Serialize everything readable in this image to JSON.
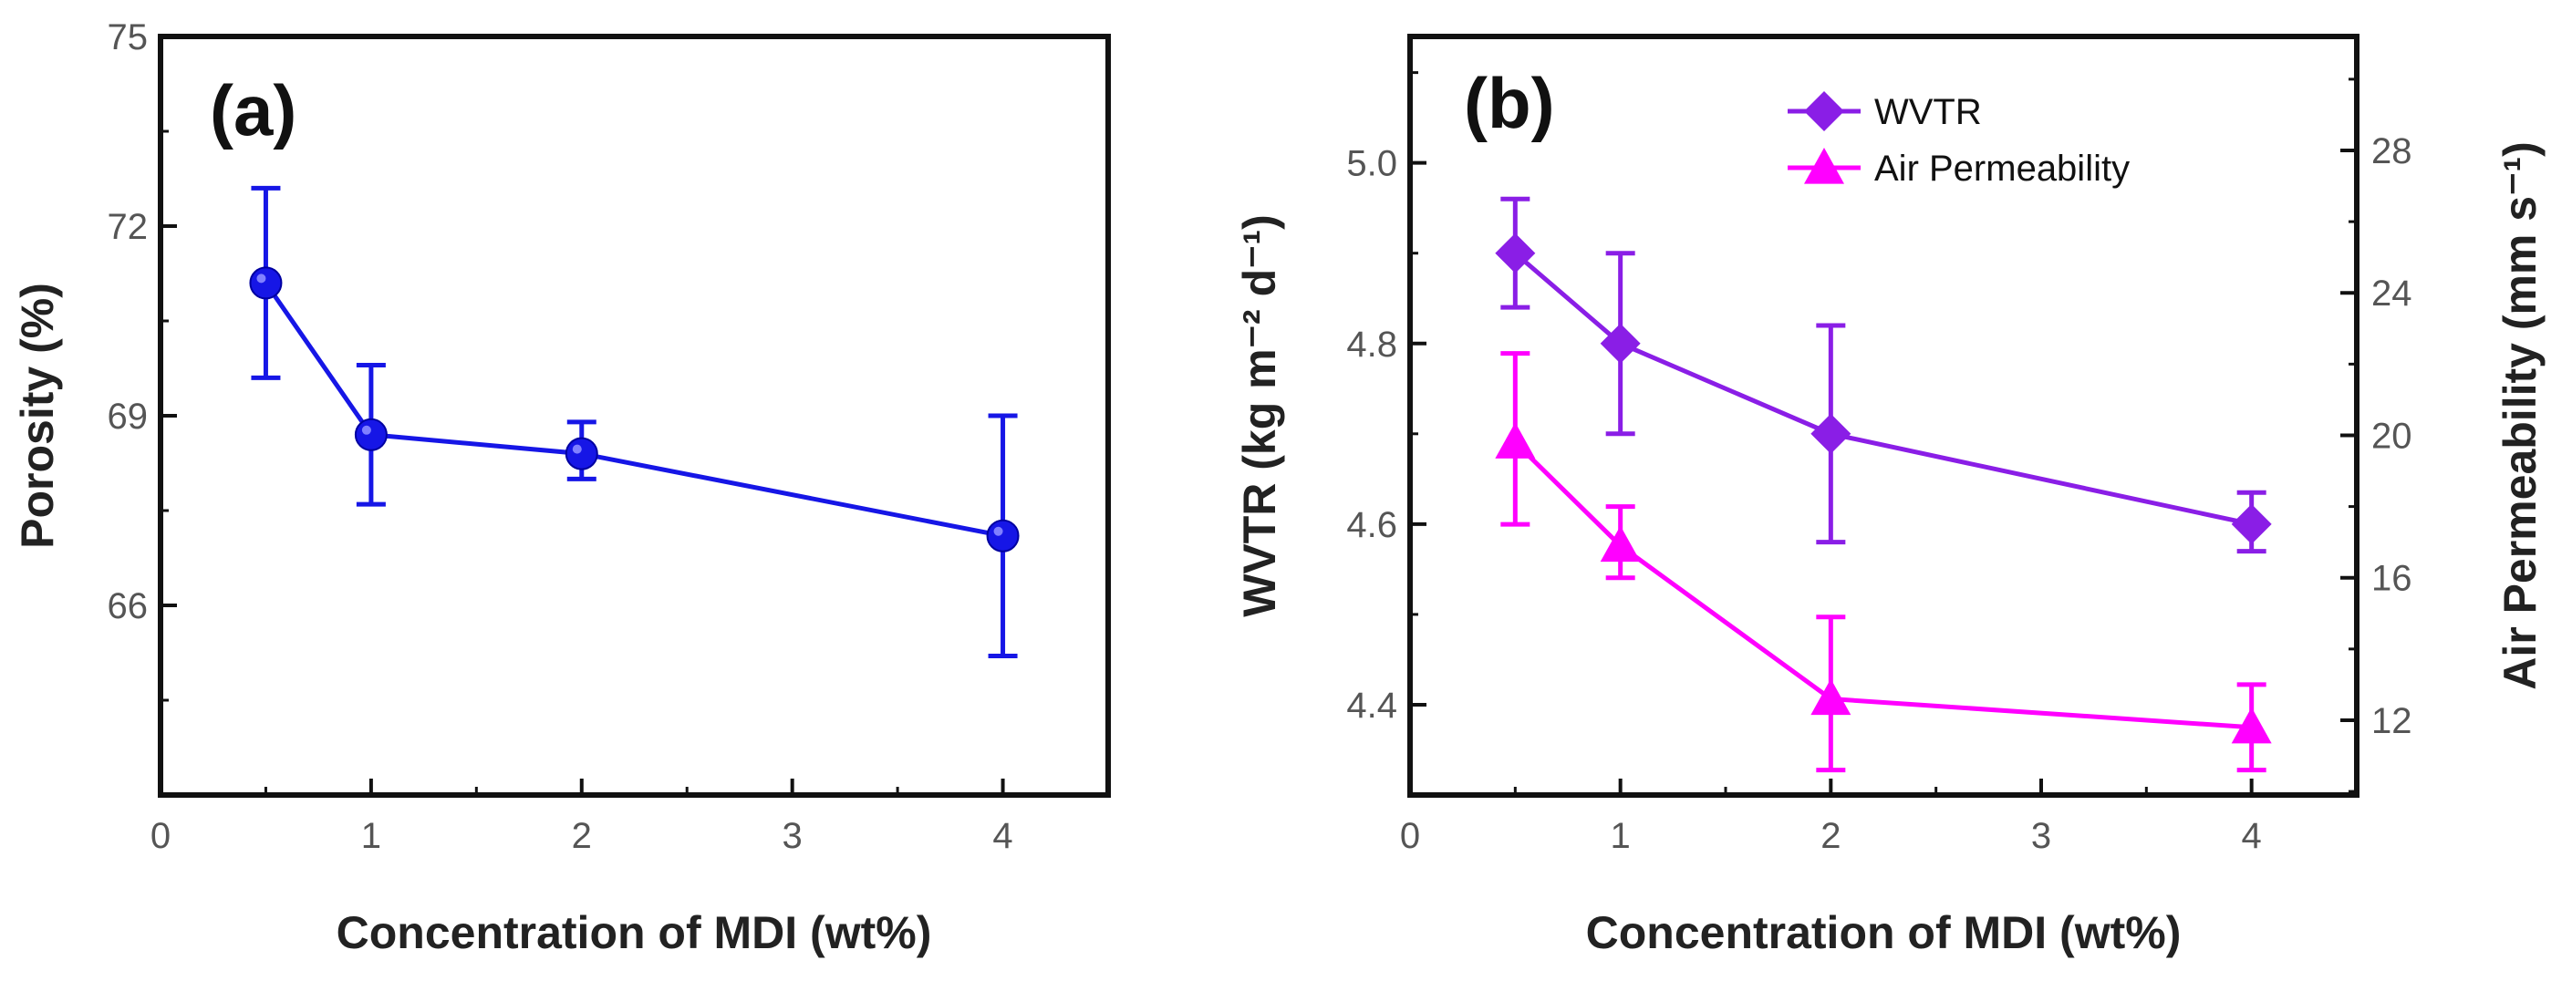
{
  "chart_data": [
    {
      "type": "line",
      "panel_label": "(a)",
      "xlabel": "Concentration of MDI (wt%)",
      "ylabel": "Porosity (%)",
      "xlim": [
        0,
        4.5
      ],
      "ylim": [
        63,
        75
      ],
      "xticks": [
        0,
        1,
        2,
        3,
        4
      ],
      "yticks": [
        66,
        69,
        72,
        75
      ],
      "series": [
        {
          "name": "Porosity",
          "color": "#1616e6",
          "marker": "circle",
          "x": [
            0.5,
            1,
            2,
            4
          ],
          "y": [
            71.1,
            68.7,
            68.4,
            67.1
          ],
          "err_low": [
            69.6,
            67.6,
            68.0,
            65.2
          ],
          "err_high": [
            72.6,
            69.8,
            68.9,
            69.0
          ]
        }
      ]
    },
    {
      "type": "line",
      "panel_label": "(b)",
      "xlabel": "Concentration of MDI (wt%)",
      "ylabel": "WVTR (kg m⁻² d⁻¹)",
      "y2label": "Air Permeability (mm s⁻¹)",
      "xlim": [
        0,
        4.5
      ],
      "ylim": [
        4.3,
        5.14
      ],
      "y2lim": [
        9.9,
        31.2
      ],
      "xticks": [
        0,
        1,
        2,
        3,
        4
      ],
      "yticks": [
        4.4,
        4.6,
        4.8,
        5.0
      ],
      "y2ticks": [
        12,
        16,
        20,
        24,
        28
      ],
      "legend_position": "top-right",
      "series": [
        {
          "name": "WVTR",
          "axis": "left",
          "color": "#8a1ee6",
          "marker": "diamond",
          "x": [
            0.5,
            1,
            2,
            4
          ],
          "y": [
            4.9,
            4.8,
            4.7,
            4.6
          ],
          "err_low": [
            4.84,
            4.7,
            4.58,
            4.57
          ],
          "err_high": [
            4.96,
            4.9,
            4.82,
            4.635
          ]
        },
        {
          "name": "Air Permeability",
          "axis": "right",
          "color": "#ff00ff",
          "marker": "triangle",
          "x": [
            0.5,
            1,
            2,
            4
          ],
          "y": [
            19.8,
            16.9,
            12.6,
            11.8
          ],
          "err_low": [
            17.5,
            16.0,
            10.6,
            10.6
          ],
          "err_high": [
            22.3,
            18.0,
            14.9,
            13.0
          ]
        }
      ]
    }
  ]
}
